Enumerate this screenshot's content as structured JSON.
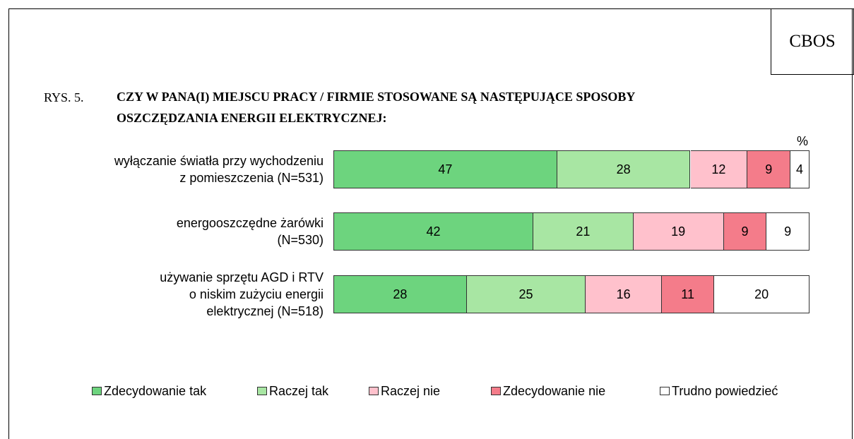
{
  "chart_data": {
    "type": "stacked_bar_horizontal",
    "brand": "CBOS",
    "figure_label": "RYS. 5.",
    "title": "CZY W PANA(I) MIEJSCU PRACY / FIRMIE STOSOWANE SĄ NASTĘPUJĄCE SPOSOBY\nOSZCZĘDZANIA ENERGII ELEKTRYCZNEJ:",
    "unit_label": "%",
    "xlim": [
      0,
      100
    ],
    "categories": [
      "wyłączanie światła przy wychodzeniu\nz pomieszczenia (N=531)",
      "energooszczędne żarówki\n(N=530)",
      "używanie sprzętu AGD i RTV\no niskim zużyciu energii\nelektrycznej (N=518)"
    ],
    "series": [
      {
        "name": "Zdecydowanie tak",
        "color": "#6dd47e",
        "values": [
          47,
          42,
          28
        ]
      },
      {
        "name": "Raczej tak",
        "color": "#a8e6a3",
        "values": [
          28,
          21,
          25
        ]
      },
      {
        "name": "Raczej nie",
        "color": "#ffc1cc",
        "values": [
          12,
          19,
          16
        ]
      },
      {
        "name": "Zdecydowanie nie",
        "color": "#f47c8a",
        "values": [
          9,
          9,
          11
        ]
      },
      {
        "name": "Trudno powiedzieć",
        "color": "#ffffff",
        "values": [
          4,
          9,
          20
        ]
      }
    ]
  }
}
